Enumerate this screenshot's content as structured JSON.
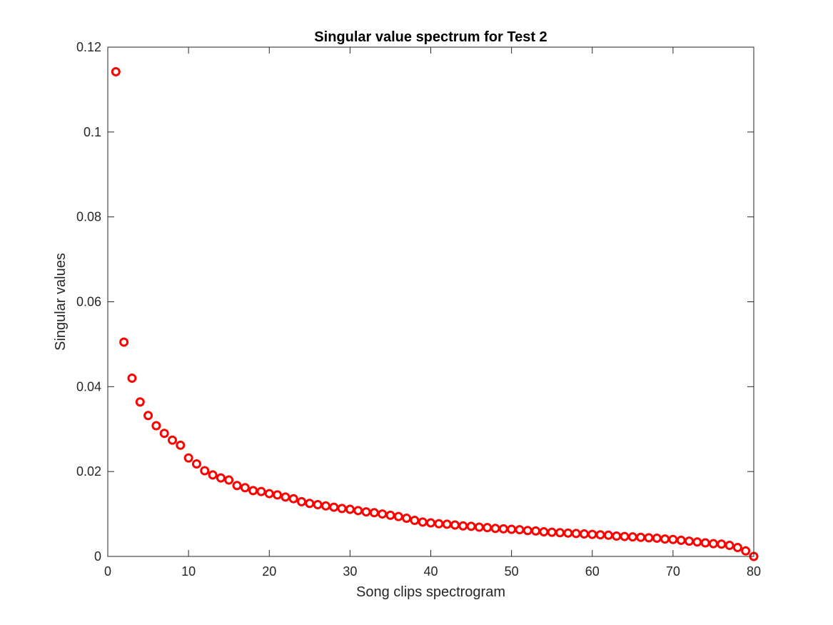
{
  "chart_data": {
    "type": "scatter",
    "title": "Singular value spectrum for Test 2",
    "xlabel": "Song clips spectrogram",
    "ylabel": "Singular values",
    "xlim": [
      0,
      80
    ],
    "ylim": [
      0,
      0.12
    ],
    "xticks": [
      0,
      10,
      20,
      30,
      40,
      50,
      60,
      70,
      80
    ],
    "xtick_labels": [
      "0",
      "10",
      "20",
      "30",
      "40",
      "50",
      "60",
      "70",
      "80"
    ],
    "yticks": [
      0,
      0.02,
      0.04,
      0.06,
      0.08,
      0.1,
      0.12
    ],
    "ytick_labels": [
      "0",
      "0.02",
      "0.04",
      "0.06",
      "0.08",
      "0.1",
      "0.12"
    ],
    "grid": false,
    "marker": "circle",
    "marker_color": "#ff0000",
    "series": [
      {
        "x": [
          1,
          2,
          3,
          4,
          5,
          6,
          7,
          8,
          9,
          10,
          11,
          12,
          13,
          14,
          15,
          16,
          17,
          18,
          19,
          20,
          21,
          22,
          23,
          24,
          25,
          26,
          27,
          28,
          29,
          30,
          31,
          32,
          33,
          34,
          35,
          36,
          37,
          38,
          39,
          40,
          41,
          42,
          43,
          44,
          45,
          46,
          47,
          48,
          49,
          50,
          51,
          52,
          53,
          54,
          55,
          56,
          57,
          58,
          59,
          60,
          61,
          62,
          63,
          64,
          65,
          66,
          67,
          68,
          69,
          70,
          71,
          72,
          73,
          74,
          75,
          76,
          77,
          78,
          79,
          80
        ],
        "values": [
          0.1142,
          0.0505,
          0.042,
          0.0364,
          0.0332,
          0.0308,
          0.029,
          0.0274,
          0.0262,
          0.0232,
          0.0218,
          0.0202,
          0.0192,
          0.0185,
          0.018,
          0.0167,
          0.0162,
          0.0155,
          0.0153,
          0.0148,
          0.0145,
          0.014,
          0.0136,
          0.0129,
          0.0125,
          0.0122,
          0.0119,
          0.0116,
          0.0113,
          0.0111,
          0.0108,
          0.0105,
          0.0103,
          0.01,
          0.0097,
          0.0094,
          0.009,
          0.0085,
          0.0081,
          0.0079,
          0.0077,
          0.0076,
          0.0074,
          0.0072,
          0.0071,
          0.0069,
          0.0068,
          0.0066,
          0.0065,
          0.0064,
          0.0063,
          0.0061,
          0.006,
          0.0058,
          0.0057,
          0.0056,
          0.0055,
          0.0054,
          0.0053,
          0.0052,
          0.0051,
          0.005,
          0.0048,
          0.0047,
          0.0046,
          0.0045,
          0.0044,
          0.0043,
          0.0041,
          0.004,
          0.0038,
          0.0036,
          0.0034,
          0.0032,
          0.003,
          0.0029,
          0.0026,
          0.0021,
          0.0013,
          0.0
        ]
      }
    ]
  }
}
